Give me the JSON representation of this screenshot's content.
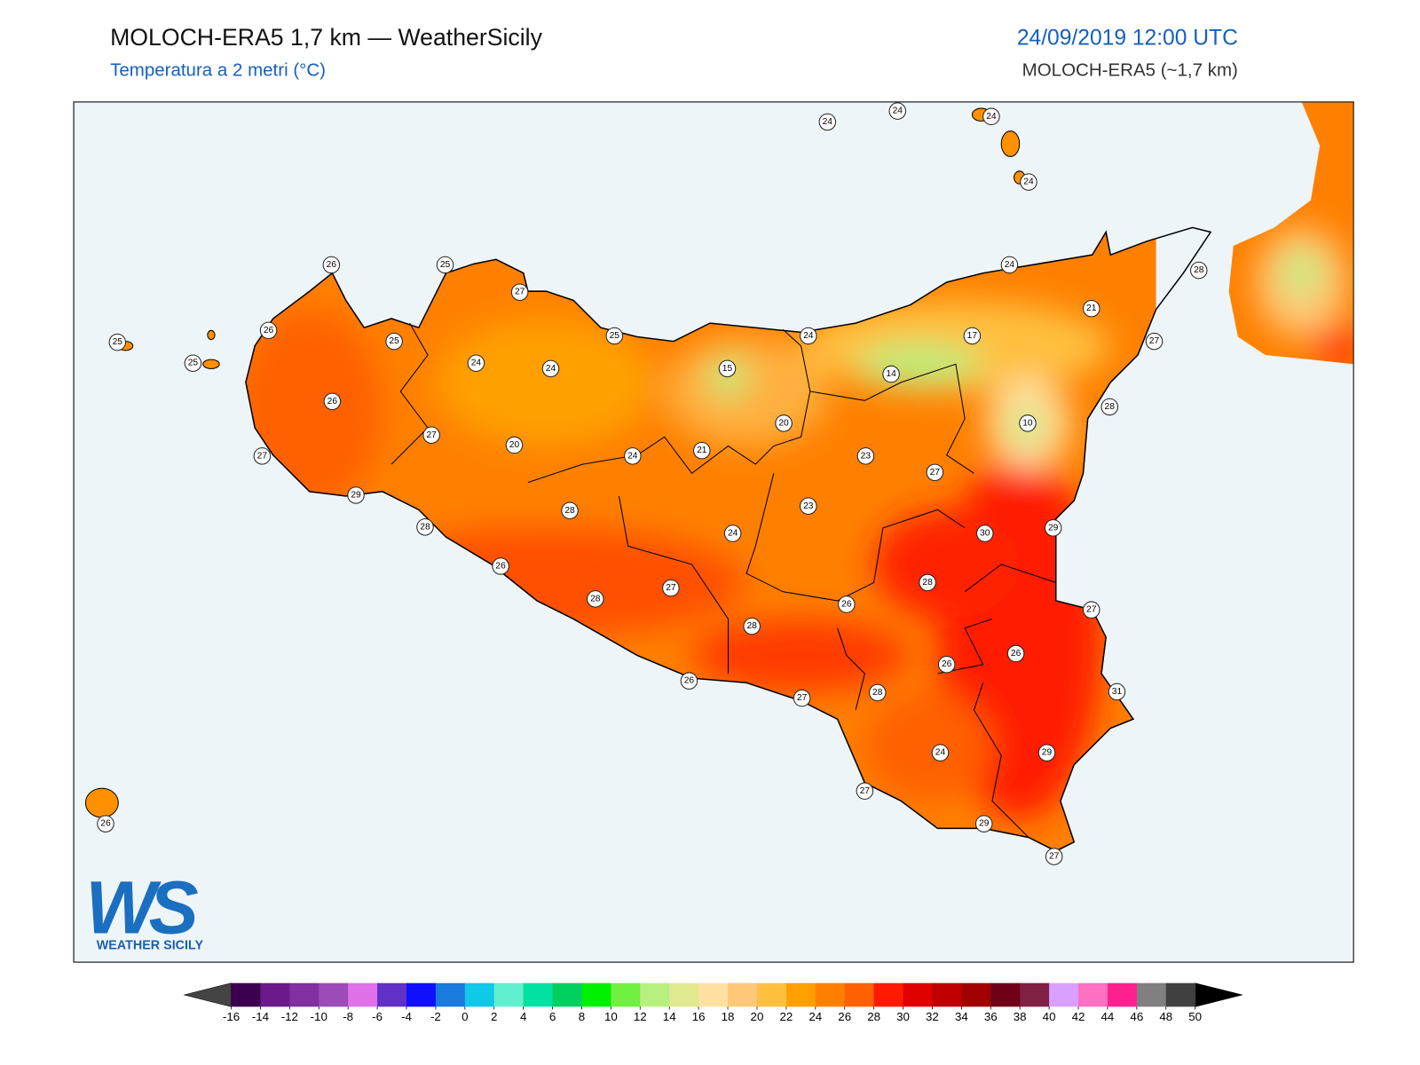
{
  "header": {
    "title": "MOLOCH-ERA5 1,7 km — WeatherSicily",
    "subtitle": "Temperatura a 2 metri (°C)",
    "datetime": "24/09/2019 12:00 UTC",
    "model": "MOLOCH-ERA5 (~1,7 km)"
  },
  "stations": [
    24,
    24,
    24,
    24,
    26,
    25,
    27,
    24,
    28,
    25,
    26,
    25,
    25,
    24,
    17,
    21,
    27,
    25,
    24,
    24,
    15,
    14,
    26,
    27,
    20,
    10,
    28,
    27,
    20,
    24,
    21,
    23,
    27,
    29,
    28,
    28,
    23,
    24,
    30,
    29,
    26,
    27,
    28,
    28,
    26,
    27,
    28,
    26,
    26,
    26,
    31,
    27,
    28,
    24,
    29,
    27,
    29,
    26,
    27
  ],
  "colorbar": {
    "ticks": [
      -16,
      -14,
      -12,
      -10,
      -8,
      -6,
      -4,
      -2,
      0,
      2,
      4,
      6,
      8,
      10,
      12,
      14,
      16,
      18,
      20,
      22,
      24,
      26,
      28,
      30,
      32,
      34,
      36,
      38,
      40,
      42,
      44,
      46,
      48,
      50
    ],
    "colors": [
      "#3c0050",
      "#6a1a8a",
      "#8030a0",
      "#9b4cb8",
      "#e070e8",
      "#6030c8",
      "#1010ff",
      "#1a7ae0",
      "#10c8e8",
      "#60f0d0",
      "#00e0a0",
      "#00d060",
      "#00f000",
      "#70f040",
      "#b8f080",
      "#e0e890",
      "#ffe0a0",
      "#ffc878",
      "#ffc040",
      "#ffa000",
      "#ff8000",
      "#ff6000",
      "#ff1a00",
      "#e00000",
      "#c00000",
      "#a00000",
      "#700018",
      "#802045",
      "#d8a0ff",
      "#ff70c0",
      "#ff2090",
      "#808080",
      "#404040"
    ],
    "under": "#444444",
    "over": "#000000"
  },
  "logo": {
    "mark": "WS",
    "text": "WEATHER SICILY"
  }
}
